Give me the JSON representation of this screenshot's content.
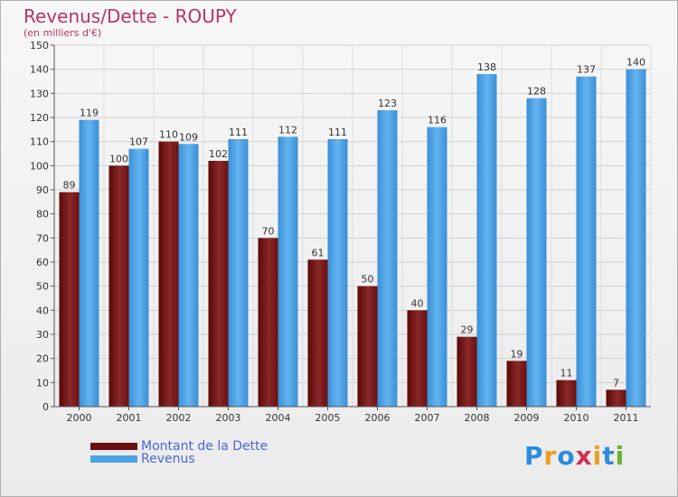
{
  "title": "Revenus/Dette - ROUPY",
  "subtitle": "(en milliers d'€)",
  "colors": {
    "dette": "#7a1a1a",
    "revenus": "#4a9fe0",
    "title": "#b8336a",
    "axis": "#333333"
  },
  "legend": [
    {
      "label": "Montant de la Dette",
      "color": "#6a0f0f"
    },
    {
      "label": "Revenus",
      "color": "#4aa3e6"
    }
  ],
  "logo": {
    "letters": [
      "P",
      "r",
      "o",
      "x",
      "i",
      "t",
      "i"
    ]
  },
  "chart_data": {
    "type": "bar",
    "categories": [
      "2000",
      "2001",
      "2002",
      "2003",
      "2004",
      "2005",
      "2006",
      "2007",
      "2008",
      "2009",
      "2010",
      "2011"
    ],
    "series": [
      {
        "name": "Montant de la Dette",
        "values": [
          89,
          100,
          110,
          102,
          70,
          61,
          50,
          40,
          29,
          19,
          11,
          7
        ]
      },
      {
        "name": "Revenus",
        "values": [
          119,
          107,
          109,
          111,
          112,
          111,
          123,
          116,
          138,
          128,
          137,
          140
        ]
      }
    ],
    "ylim": [
      0,
      150
    ],
    "yticks": [
      0,
      10,
      20,
      30,
      40,
      50,
      60,
      70,
      80,
      90,
      100,
      110,
      120,
      130,
      140,
      150
    ],
    "grid": true,
    "legend_position": "bottom-left"
  }
}
